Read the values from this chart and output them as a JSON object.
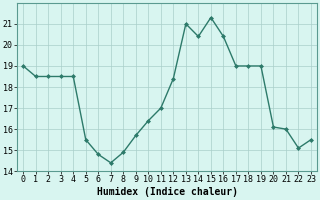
{
  "title": "",
  "xlabel": "Humidex (Indice chaleur)",
  "x": [
    0,
    1,
    2,
    3,
    4,
    5,
    6,
    7,
    8,
    9,
    10,
    11,
    12,
    13,
    14,
    15,
    16,
    17,
    18,
    19,
    20,
    21,
    22,
    23
  ],
  "y": [
    19.0,
    18.5,
    18.5,
    18.5,
    18.5,
    15.5,
    14.8,
    14.4,
    14.9,
    15.7,
    16.4,
    17.0,
    18.4,
    21.0,
    20.4,
    21.3,
    20.4,
    19.0,
    19.0,
    19.0,
    16.1,
    16.0,
    15.1,
    15.5
  ],
  "ylim": [
    14,
    22
  ],
  "xlim": [
    -0.5,
    23.5
  ],
  "yticks": [
    14,
    15,
    16,
    17,
    18,
    19,
    20,
    21
  ],
  "line_color": "#2d7a6a",
  "marker": "D",
  "marker_size": 2.0,
  "bg_color": "#d8f5f0",
  "grid_color": "#aacfca",
  "line_width": 1.0,
  "xlabel_fontsize": 7,
  "tick_fontsize": 6,
  "fig_width": 3.2,
  "fig_height": 2.0,
  "dpi": 100
}
